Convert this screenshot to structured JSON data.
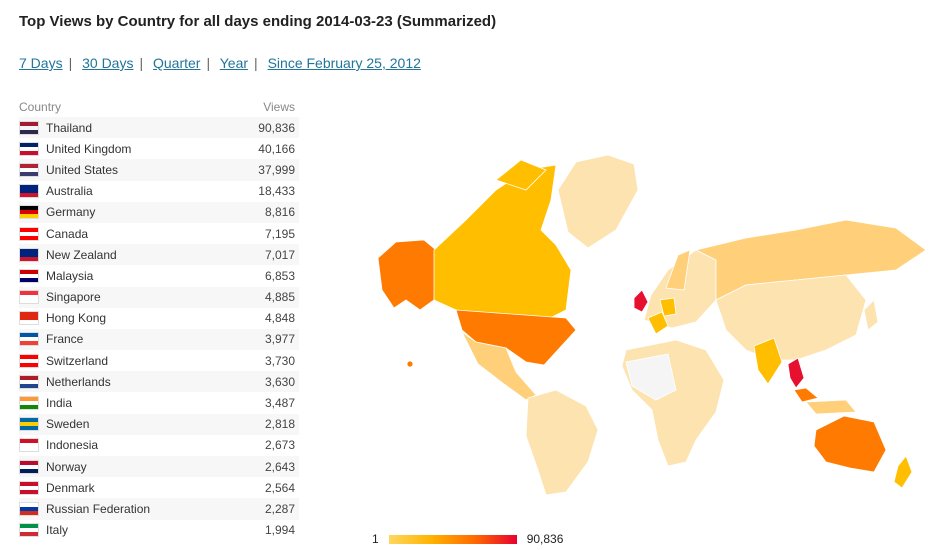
{
  "title": "Top Views by Country for all days ending 2014-03-23 (Summarized)",
  "periods": [
    "7 Days",
    "30 Days",
    "Quarter",
    "Year",
    "Since February 25, 2012"
  ],
  "table": {
    "col_country": "Country",
    "col_views": "Views",
    "rows": [
      {
        "country": "Thailand",
        "views": "90,836",
        "flag": [
          "#a51931",
          "#f4f5f8",
          "#2d2a4a"
        ]
      },
      {
        "country": "United Kingdom",
        "views": "40,166",
        "flag": [
          "#012169",
          "#ffffff",
          "#c8102e"
        ]
      },
      {
        "country": "United States",
        "views": "37,999",
        "flag": [
          "#b22234",
          "#ffffff",
          "#3c3b6e"
        ]
      },
      {
        "country": "Australia",
        "views": "18,433",
        "flag": [
          "#00247d",
          "#00247d",
          "#cf142b"
        ]
      },
      {
        "country": "Germany",
        "views": "8,816",
        "flag": [
          "#000000",
          "#dd0000",
          "#ffce00"
        ]
      },
      {
        "country": "Canada",
        "views": "7,195",
        "flag": [
          "#ff0000",
          "#ffffff",
          "#ff0000"
        ]
      },
      {
        "country": "New Zealand",
        "views": "7,017",
        "flag": [
          "#00247d",
          "#00247d",
          "#cc142b"
        ]
      },
      {
        "country": "Malaysia",
        "views": "6,853",
        "flag": [
          "#cc0001",
          "#ffffff",
          "#010066"
        ]
      },
      {
        "country": "Singapore",
        "views": "4,885",
        "flag": [
          "#ef3340",
          "#ffffff",
          "#ffffff"
        ]
      },
      {
        "country": "Hong Kong",
        "views": "4,848",
        "flag": [
          "#de2910",
          "#de2910",
          "#ffffff"
        ]
      },
      {
        "country": "France",
        "views": "3,977",
        "flag": [
          "#0055a4",
          "#ffffff",
          "#ef4135"
        ]
      },
      {
        "country": "Switzerland",
        "views": "3,730",
        "flag": [
          "#ff0000",
          "#ffffff",
          "#ff0000"
        ]
      },
      {
        "country": "Netherlands",
        "views": "3,630",
        "flag": [
          "#ae1c28",
          "#ffffff",
          "#21468b"
        ]
      },
      {
        "country": "India",
        "views": "3,487",
        "flag": [
          "#ff9933",
          "#ffffff",
          "#138808"
        ]
      },
      {
        "country": "Sweden",
        "views": "2,818",
        "flag": [
          "#006aa7",
          "#fecc00",
          "#006aa7"
        ]
      },
      {
        "country": "Indonesia",
        "views": "2,673",
        "flag": [
          "#ce1126",
          "#ffffff",
          "#ffffff"
        ]
      },
      {
        "country": "Norway",
        "views": "2,643",
        "flag": [
          "#ba0c2f",
          "#ffffff",
          "#00205b"
        ]
      },
      {
        "country": "Denmark",
        "views": "2,564",
        "flag": [
          "#c8102e",
          "#ffffff",
          "#c8102e"
        ]
      },
      {
        "country": "Russian Federation",
        "views": "2,287",
        "flag": [
          "#ffffff",
          "#0039a6",
          "#d52b1e"
        ]
      },
      {
        "country": "Italy",
        "views": "1,994",
        "flag": [
          "#009246",
          "#ffffff",
          "#ce2b37"
        ]
      }
    ]
  },
  "legend": {
    "min": "1",
    "max": "90,836"
  },
  "map_colors": {
    "none": "#f5f5f5",
    "very_low": "#fde3b0",
    "low": "#ffd079",
    "mid": "#ffbe00",
    "high": "#ff7a00",
    "top": "#e8102f"
  }
}
